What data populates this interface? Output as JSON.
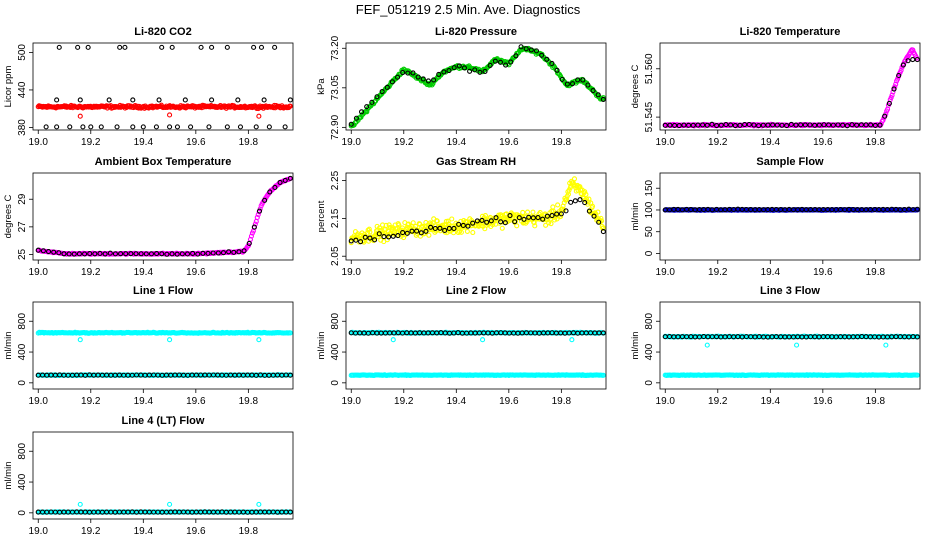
{
  "main_title": "FEF_051219  2.5 Min. Ave. Diagnostics",
  "chart_data": [
    {
      "type": "scatter",
      "title": "Li-820 CO2",
      "xlabel": "",
      "ylabel": "Licor ppm",
      "xlim": [
        18.98,
        19.97
      ],
      "ylim": [
        376,
        515
      ],
      "xticks": [
        "19.0",
        "19.2",
        "19.4",
        "19.6",
        "19.8"
      ],
      "yticks": [
        "380",
        "440",
        "500"
      ],
      "series": [
        {
          "name": "red dense",
          "color": "#ff0000",
          "gen": "band",
          "n": 300,
          "center": 413,
          "spread": 3
        },
        {
          "name": "red sparse",
          "color": "#ff0000",
          "gen": "list",
          "points": [
            [
              19.16,
              398
            ],
            [
              19.5,
              400
            ],
            [
              19.84,
              398
            ]
          ]
        },
        {
          "name": "black high",
          "color": "#000000",
          "gen": "list",
          "points": [
            [
              19.08,
              508
            ],
            [
              19.15,
              508
            ],
            [
              19.19,
              508
            ],
            [
              19.31,
              508
            ],
            [
              19.33,
              508
            ],
            [
              19.47,
              508
            ],
            [
              19.51,
              508
            ],
            [
              19.62,
              508
            ],
            [
              19.66,
              508
            ],
            [
              19.72,
              508
            ],
            [
              19.82,
              508
            ],
            [
              19.85,
              508
            ],
            [
              19.9,
              508
            ]
          ]
        },
        {
          "name": "black mid",
          "color": "#000000",
          "gen": "list",
          "points": [
            [
              19.07,
              424
            ],
            [
              19.16,
              424
            ],
            [
              19.27,
              424
            ],
            [
              19.36,
              424
            ],
            [
              19.46,
              424
            ],
            [
              19.56,
              424
            ],
            [
              19.66,
              424
            ],
            [
              19.76,
              424
            ],
            [
              19.86,
              424
            ],
            [
              19.96,
              424
            ]
          ]
        },
        {
          "name": "black low",
          "color": "#000000",
          "gen": "list",
          "points": [
            [
              19.03,
              381
            ],
            [
              19.07,
              381
            ],
            [
              19.12,
              381
            ],
            [
              19.17,
              381
            ],
            [
              19.2,
              381
            ],
            [
              19.24,
              381
            ],
            [
              19.3,
              381
            ],
            [
              19.36,
              381
            ],
            [
              19.4,
              381
            ],
            [
              19.45,
              381
            ],
            [
              19.5,
              381
            ],
            [
              19.53,
              381
            ],
            [
              19.58,
              381
            ],
            [
              19.65,
              381
            ],
            [
              19.72,
              381
            ],
            [
              19.77,
              381
            ],
            [
              19.83,
              381
            ],
            [
              19.88,
              381
            ],
            [
              19.94,
              381
            ]
          ]
        }
      ]
    },
    {
      "type": "scatter",
      "title": "Li-820 Pressure",
      "xlabel": "",
      "ylabel": "kPa",
      "xlim": [
        18.98,
        19.97
      ],
      "ylim": [
        72.89,
        73.22
      ],
      "xticks": [
        "19.0",
        "19.2",
        "19.4",
        "19.6",
        "19.8"
      ],
      "yticks": [
        "72.90",
        "73.05",
        "73.20"
      ],
      "series": [
        {
          "name": "green",
          "color": "#00cc00",
          "gen": "curve",
          "n": 260,
          "spread": 0.008,
          "curve": [
            [
              19.0,
              72.9
            ],
            [
              19.1,
              73.01
            ],
            [
              19.2,
              73.12
            ],
            [
              19.25,
              73.09
            ],
            [
              19.3,
              73.06
            ],
            [
              19.35,
              73.11
            ],
            [
              19.4,
              73.13
            ],
            [
              19.45,
              73.13
            ],
            [
              19.5,
              73.11
            ],
            [
              19.55,
              73.16
            ],
            [
              19.6,
              73.14
            ],
            [
              19.65,
              73.2
            ],
            [
              19.72,
              73.18
            ],
            [
              19.78,
              73.12
            ],
            [
              19.82,
              73.06
            ],
            [
              19.88,
              73.08
            ],
            [
              19.95,
              73.01
            ]
          ]
        },
        {
          "name": "black",
          "color": "#000000",
          "gen": "curve",
          "n": 50,
          "spread": 0.01,
          "curve": [
            [
              19.0,
              72.91
            ],
            [
              19.1,
              73.02
            ],
            [
              19.2,
              73.11
            ],
            [
              19.25,
              73.1
            ],
            [
              19.3,
              73.07
            ],
            [
              19.35,
              73.11
            ],
            [
              19.4,
              73.13
            ],
            [
              19.45,
              73.12
            ],
            [
              19.5,
              73.11
            ],
            [
              19.55,
              73.15
            ],
            [
              19.6,
              73.14
            ],
            [
              19.65,
              73.21
            ],
            [
              19.72,
              73.18
            ],
            [
              19.78,
              73.12
            ],
            [
              19.82,
              73.06
            ],
            [
              19.88,
              73.08
            ],
            [
              19.95,
              73.01
            ]
          ]
        }
      ]
    },
    {
      "type": "scatter",
      "title": "Li-820 Temperature",
      "xlabel": "",
      "ylabel": "degrees C",
      "xlim": [
        18.98,
        19.97
      ],
      "ylim": [
        51.541,
        51.568
      ],
      "xticks": [
        "19.0",
        "19.2",
        "19.4",
        "19.6",
        "19.8"
      ],
      "yticks": [
        "51.545",
        "51.560"
      ],
      "series": [
        {
          "name": "magenta",
          "color": "#ff00ff",
          "gen": "curve",
          "n": 280,
          "spread": 0.0003,
          "curve": [
            [
              19.0,
              51.5425
            ],
            [
              19.82,
              51.5425
            ],
            [
              19.84,
              51.546
            ],
            [
              19.88,
              51.556
            ],
            [
              19.91,
              51.562
            ],
            [
              19.94,
              51.566
            ],
            [
              19.96,
              51.563
            ]
          ]
        },
        {
          "name": "black",
          "color": "#000000",
          "gen": "curve",
          "n": 55,
          "spread": 0.0003,
          "curve": [
            [
              19.0,
              51.5425
            ],
            [
              19.82,
              51.5425
            ],
            [
              19.84,
              51.546
            ],
            [
              19.88,
              51.556
            ],
            [
              19.91,
              51.562
            ],
            [
              19.94,
              51.563
            ]
          ]
        }
      ]
    },
    {
      "type": "scatter",
      "title": "Ambient Box Temperature",
      "xlabel": "",
      "ylabel": "degrees C",
      "xlim": [
        18.98,
        19.97
      ],
      "ylim": [
        24.6,
        30.9
      ],
      "xticks": [
        "19.0",
        "19.2",
        "19.4",
        "19.6",
        "19.8"
      ],
      "yticks": [
        "25",
        "27",
        "29"
      ],
      "series": [
        {
          "name": "magenta",
          "color": "#ff00ff",
          "gen": "curve",
          "n": 260,
          "spread": 0.06,
          "curve": [
            [
              19.0,
              25.3
            ],
            [
              19.1,
              25.05
            ],
            [
              19.6,
              25.05
            ],
            [
              19.78,
              25.2
            ],
            [
              19.8,
              25.6
            ],
            [
              19.82,
              26.8
            ],
            [
              19.85,
              28.6
            ],
            [
              19.88,
              29.5
            ],
            [
              19.92,
              30.2
            ],
            [
              19.96,
              30.5
            ]
          ]
        },
        {
          "name": "black",
          "color": "#000000",
          "gen": "curve",
          "n": 50,
          "spread": 0.05,
          "curve": [
            [
              19.0,
              25.3
            ],
            [
              19.1,
              25.05
            ],
            [
              19.6,
              25.05
            ],
            [
              19.78,
              25.2
            ],
            [
              19.8,
              25.6
            ],
            [
              19.82,
              26.8
            ],
            [
              19.85,
              28.6
            ],
            [
              19.88,
              29.5
            ],
            [
              19.92,
              30.2
            ],
            [
              19.96,
              30.5
            ]
          ]
        }
      ]
    },
    {
      "type": "scatter",
      "title": "Gas Stream RH",
      "xlabel": "",
      "ylabel": "percent",
      "xlim": [
        18.98,
        19.97
      ],
      "ylim": [
        2.04,
        2.27
      ],
      "xticks": [
        "19.0",
        "19.2",
        "19.4",
        "19.6",
        "19.8"
      ],
      "yticks": [
        "2.05",
        "2.15",
        "2.25"
      ],
      "series": [
        {
          "name": "yellow",
          "color": "#ffff00",
          "gen": "curve",
          "n": 420,
          "spread": 0.028,
          "curve": [
            [
              19.0,
              2.1
            ],
            [
              19.2,
              2.12
            ],
            [
              19.4,
              2.13
            ],
            [
              19.6,
              2.15
            ],
            [
              19.75,
              2.15
            ],
            [
              19.8,
              2.17
            ],
            [
              19.84,
              2.24
            ],
            [
              19.88,
              2.22
            ],
            [
              19.92,
              2.17
            ],
            [
              19.96,
              2.13
            ]
          ]
        },
        {
          "name": "black",
          "color": "#000000",
          "gen": "curve",
          "n": 55,
          "spread": 0.012,
          "curve": [
            [
              19.0,
              2.09
            ],
            [
              19.2,
              2.11
            ],
            [
              19.4,
              2.13
            ],
            [
              19.6,
              2.15
            ],
            [
              19.75,
              2.15
            ],
            [
              19.8,
              2.16
            ],
            [
              19.84,
              2.2
            ],
            [
              19.88,
              2.2
            ],
            [
              19.92,
              2.16
            ],
            [
              19.96,
              2.12
            ]
          ]
        }
      ]
    },
    {
      "type": "scatter",
      "title": "Sample Flow",
      "xlabel": "",
      "ylabel": "ml/min",
      "xlim": [
        18.98,
        19.97
      ],
      "ylim": [
        -15,
        185
      ],
      "xticks": [
        "19.0",
        "19.2",
        "19.4",
        "19.6",
        "19.8"
      ],
      "yticks": [
        "0",
        "50",
        "100",
        "150"
      ],
      "series": [
        {
          "name": "blue",
          "color": "#0000cc",
          "gen": "band",
          "n": 260,
          "center": 100,
          "spread": 1.2
        },
        {
          "name": "black",
          "color": "#000000",
          "gen": "band",
          "n": 60,
          "center": 101,
          "spread": 1
        }
      ]
    },
    {
      "type": "scatter",
      "title": "Line 1 Flow",
      "xlabel": "",
      "ylabel": "ml/min",
      "xlim": [
        18.98,
        19.97
      ],
      "ylim": [
        -80,
        1050
      ],
      "xticks": [
        "19.0",
        "19.2",
        "19.4",
        "19.6",
        "19.8"
      ],
      "yticks": [
        "0",
        "400",
        "800"
      ],
      "series": [
        {
          "name": "cyan high",
          "color": "#00ffff",
          "gen": "band",
          "n": 220,
          "center": 650,
          "spread": 8
        },
        {
          "name": "cyan dips",
          "color": "#00ffff",
          "gen": "list",
          "points": [
            [
              19.16,
              560
            ],
            [
              19.5,
              560
            ],
            [
              19.84,
              560
            ]
          ]
        },
        {
          "name": "cyan low",
          "color": "#00ffff",
          "gen": "band",
          "n": 220,
          "center": 100,
          "spread": 6
        },
        {
          "name": "black low",
          "color": "#000000",
          "gen": "band",
          "n": 60,
          "center": 100,
          "spread": 4
        }
      ]
    },
    {
      "type": "scatter",
      "title": "Line 2 Flow",
      "xlabel": "",
      "ylabel": "ml/min",
      "xlim": [
        18.98,
        19.97
      ],
      "ylim": [
        -80,
        1050
      ],
      "xticks": [
        "19.0",
        "19.2",
        "19.4",
        "19.6",
        "19.8"
      ],
      "yticks": [
        "0",
        "400",
        "800"
      ],
      "series": [
        {
          "name": "cyan high",
          "color": "#00ffff",
          "gen": "band",
          "n": 220,
          "center": 650,
          "spread": 8
        },
        {
          "name": "black high",
          "color": "#000000",
          "gen": "band",
          "n": 60,
          "center": 648,
          "spread": 5
        },
        {
          "name": "cyan dips",
          "color": "#00ffff",
          "gen": "list",
          "points": [
            [
              19.16,
              560
            ],
            [
              19.5,
              560
            ],
            [
              19.84,
              560
            ]
          ]
        },
        {
          "name": "cyan low",
          "color": "#00ffff",
          "gen": "band",
          "n": 220,
          "center": 100,
          "spread": 6
        }
      ]
    },
    {
      "type": "scatter",
      "title": "Line 3 Flow",
      "xlabel": "",
      "ylabel": "ml/min",
      "xlim": [
        18.98,
        19.97
      ],
      "ylim": [
        -80,
        1050
      ],
      "xticks": [
        "19.0",
        "19.2",
        "19.4",
        "19.6",
        "19.8"
      ],
      "yticks": [
        "0",
        "400",
        "800"
      ],
      "series": [
        {
          "name": "cyan high",
          "color": "#00ffff",
          "gen": "band",
          "n": 220,
          "center": 600,
          "spread": 8
        },
        {
          "name": "black high",
          "color": "#000000",
          "gen": "band",
          "n": 60,
          "center": 598,
          "spread": 5
        },
        {
          "name": "cyan dips",
          "color": "#00ffff",
          "gen": "list",
          "points": [
            [
              19.16,
              490
            ],
            [
              19.5,
              490
            ],
            [
              19.84,
              490
            ]
          ]
        },
        {
          "name": "cyan low",
          "color": "#00ffff",
          "gen": "band",
          "n": 220,
          "center": 100,
          "spread": 6
        }
      ]
    },
    {
      "type": "scatter",
      "title": "Line 4 (LT) Flow",
      "xlabel": "",
      "ylabel": "ml/min",
      "xlim": [
        18.98,
        19.97
      ],
      "ylim": [
        -80,
        1050
      ],
      "xticks": [
        "19.0",
        "19.2",
        "19.4",
        "19.6",
        "19.8"
      ],
      "yticks": [
        "0",
        "400",
        "800"
      ],
      "series": [
        {
          "name": "cyan low",
          "color": "#00ffff",
          "gen": "band",
          "n": 220,
          "center": 10,
          "spread": 4
        },
        {
          "name": "black low",
          "color": "#000000",
          "gen": "band",
          "n": 60,
          "center": 10,
          "spread": 3
        },
        {
          "name": "cyan spikes",
          "color": "#00ffff",
          "gen": "list",
          "points": [
            [
              19.16,
              110
            ],
            [
              19.5,
              110
            ],
            [
              19.84,
              110
            ]
          ]
        }
      ]
    }
  ]
}
